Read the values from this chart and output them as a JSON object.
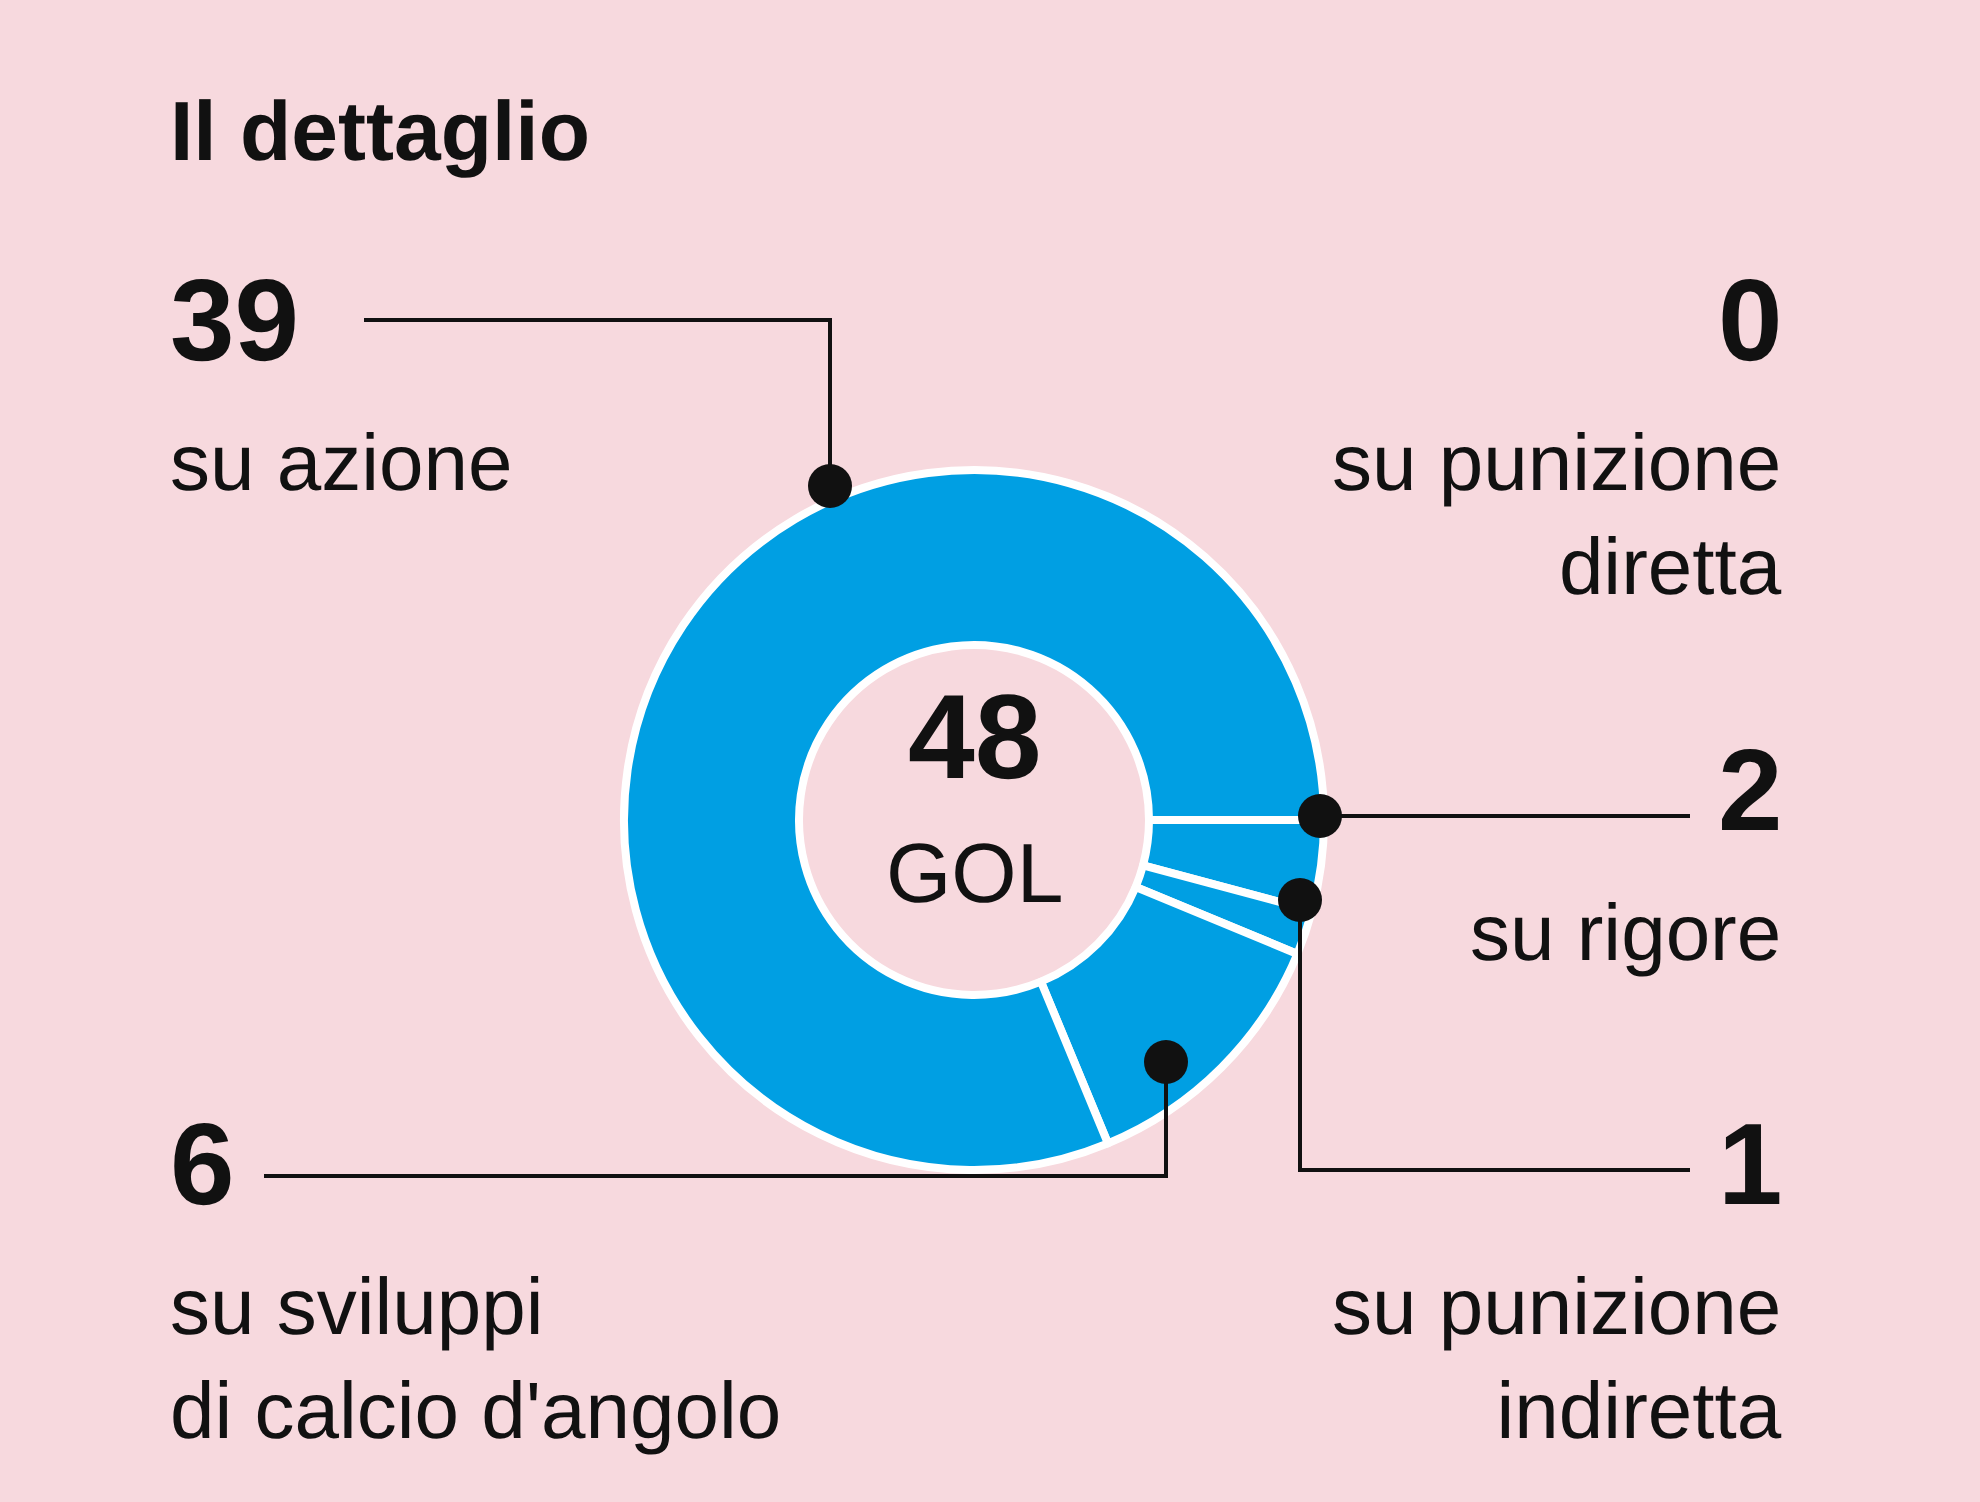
{
  "chart_data": {
    "type": "donut",
    "title": "Il dettaglio",
    "categories": [
      "su rigore",
      "su punizione\nindiretta",
      "su sviluppi\ndi calcio d'angolo",
      "su azione",
      "su punizione\ndiretta"
    ],
    "values": [
      2,
      1,
      6,
      39,
      0
    ],
    "colors": [
      "#009fe3",
      "#009fe3",
      "#009fe3",
      "#009fe3",
      "#009fe3"
    ],
    "value_labels": [
      "2",
      "1",
      "6",
      "39",
      "0"
    ],
    "annotations": [
      "48",
      "GOL"
    ]
  }
}
